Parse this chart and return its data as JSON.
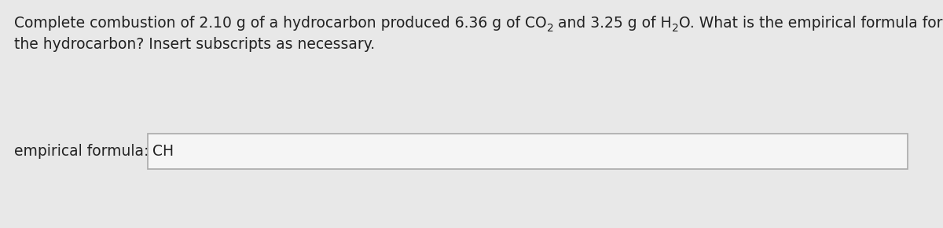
{
  "background_color": "#e8e8e8",
  "panel_color": "#f5f5f5",
  "line1_parts": [
    {
      "text": "Complete combustion of 2.10 g of a hydrocarbon produced 6.36 g of CO",
      "sub": false
    },
    {
      "text": "2",
      "sub": true
    },
    {
      "text": " and 3.25 g of H",
      "sub": false
    },
    {
      "text": "2",
      "sub": true
    },
    {
      "text": "O. What is the empirical formula for",
      "sub": false
    }
  ],
  "text_line2": "the hydrocarbon? Insert subscripts as necessary.",
  "label_text": "empirical formula:",
  "answer_text": "CH",
  "text_color": "#222222",
  "box_edge_color": "#aaaaaa",
  "font_size": 13.5,
  "sub_font_size": 10.0,
  "label_font_size": 13.5,
  "answer_font_size": 13.5
}
